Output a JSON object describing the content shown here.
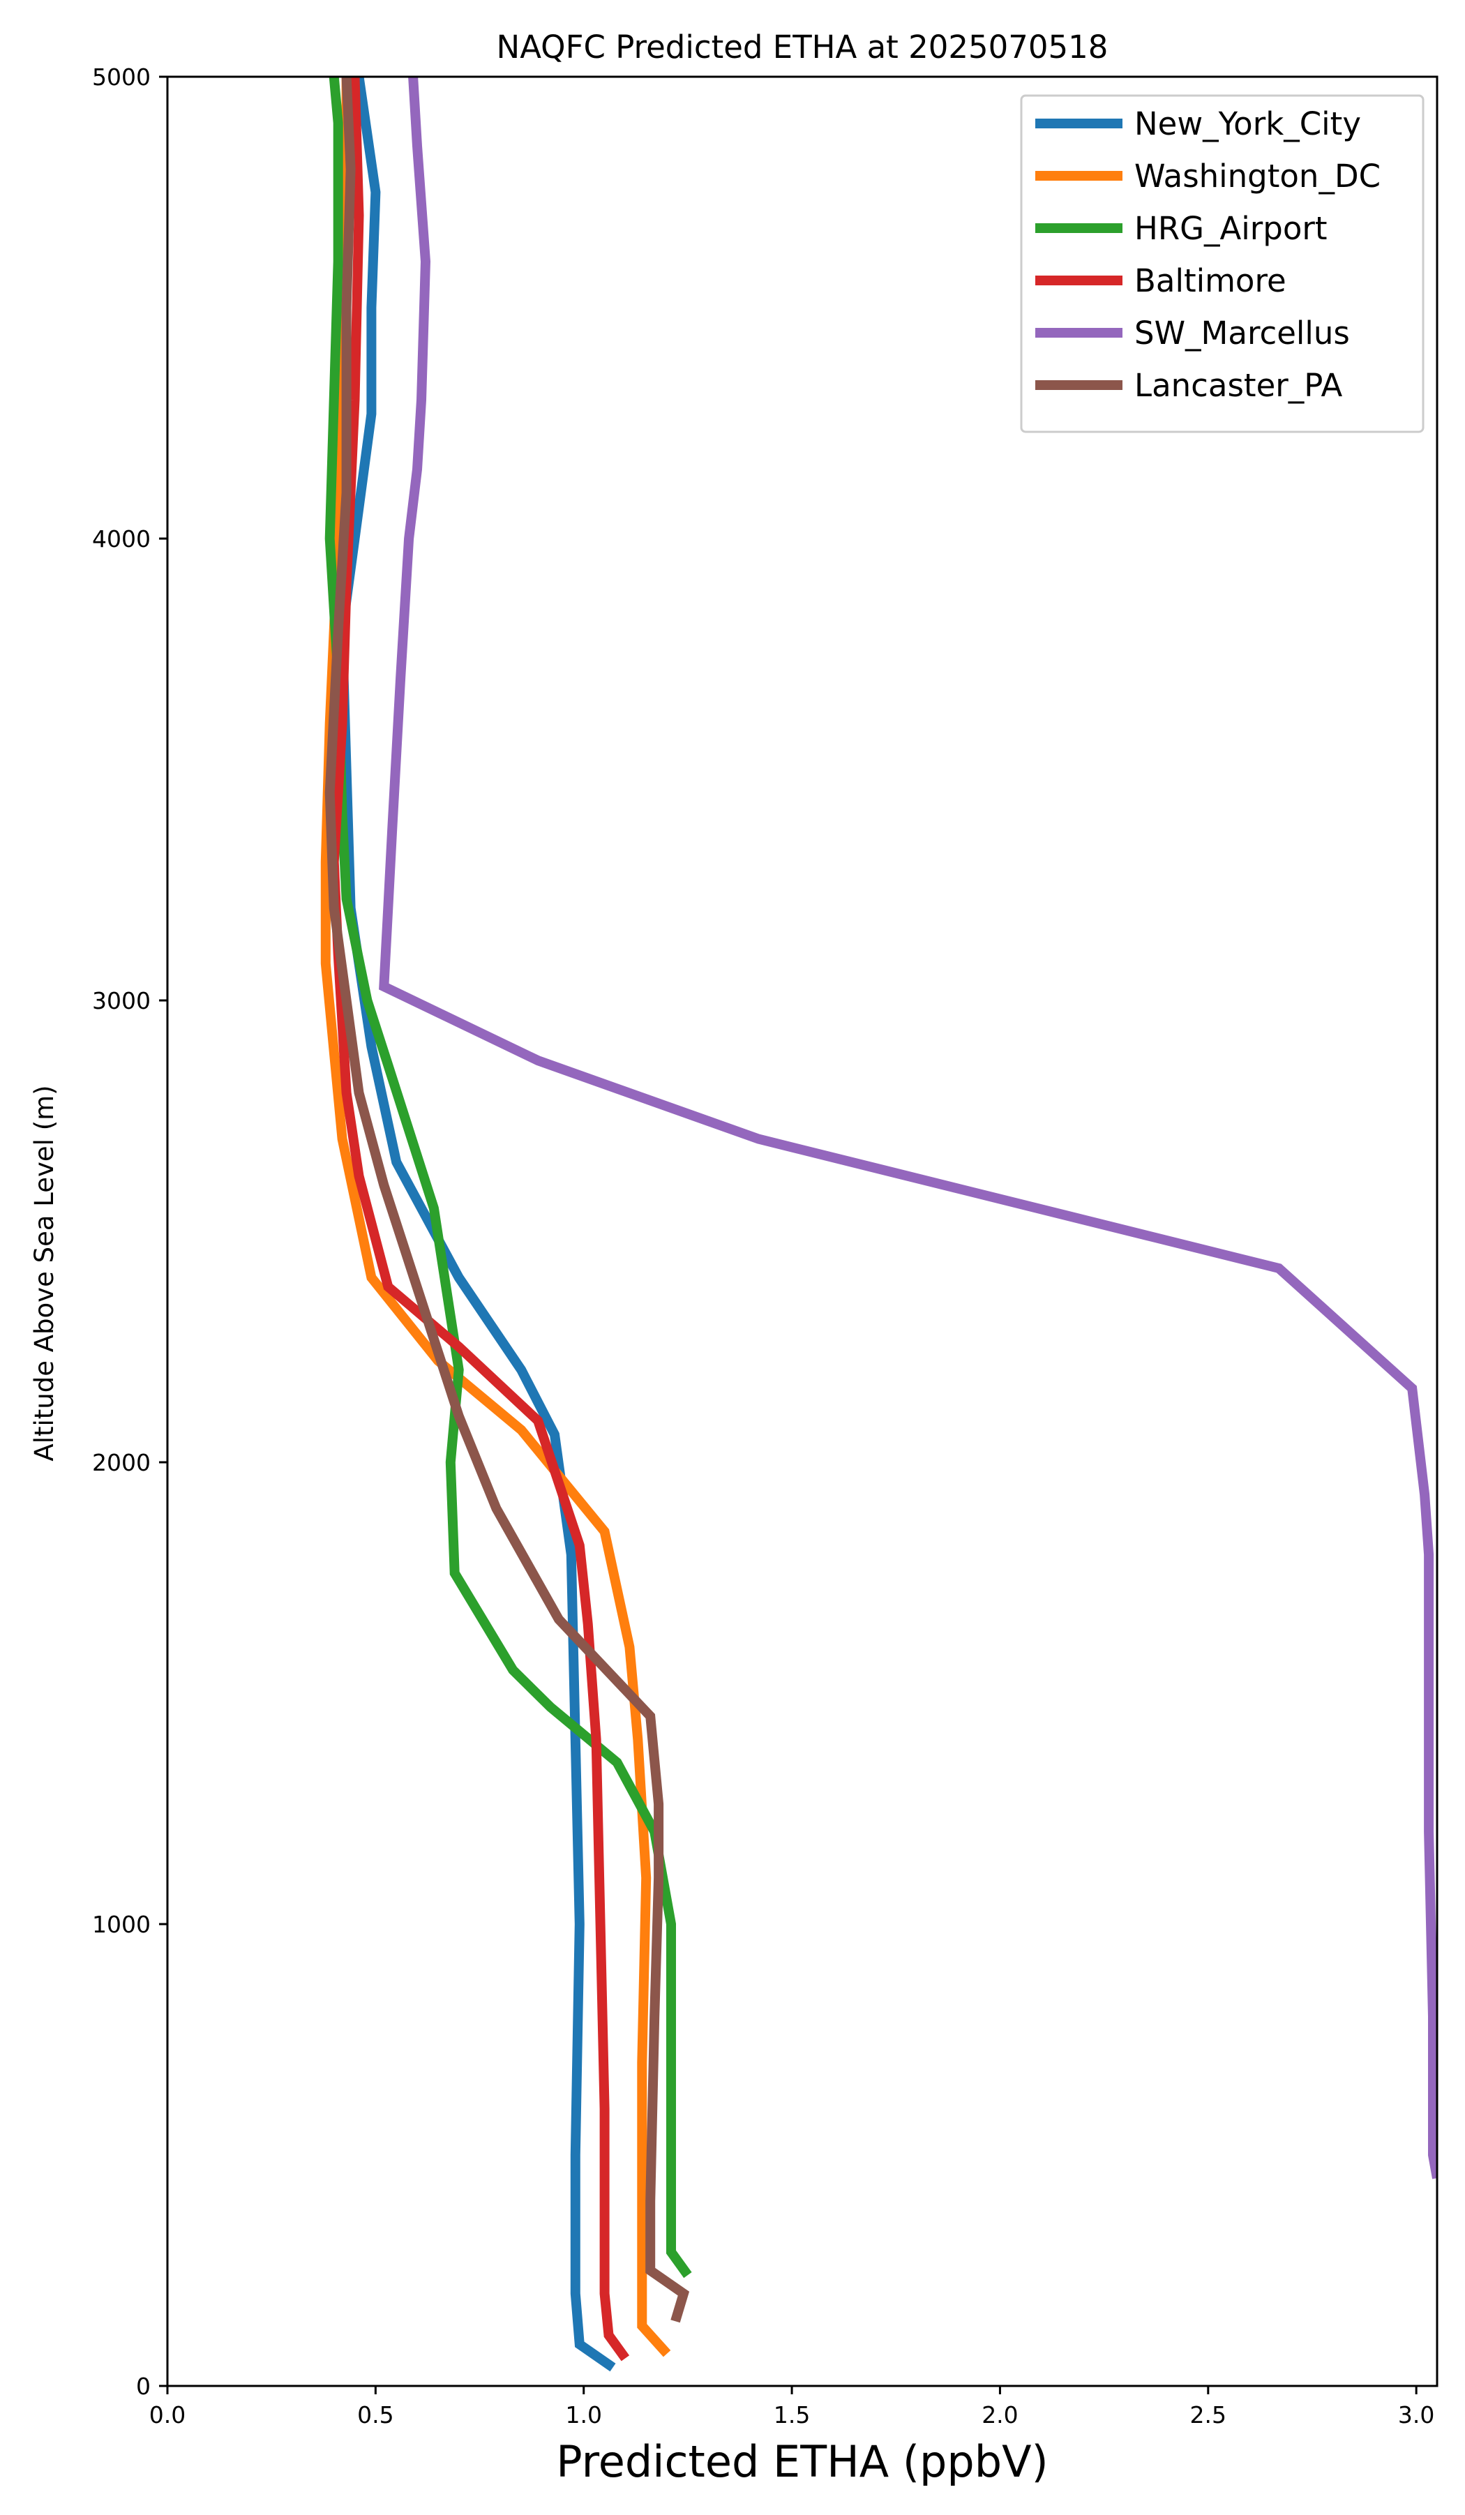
{
  "chart_data": {
    "type": "line",
    "title": "NAQFC Predicted ETHA at 2025070518",
    "xlabel": "Predicted ETHA (ppbV)",
    "ylabel": "Altitude Above Sea Level (m)",
    "xlim": [
      0.0,
      3.05
    ],
    "ylim": [
      0,
      5000
    ],
    "xticks": [
      {
        "value": 0.0,
        "label": "0.0"
      },
      {
        "value": 0.5,
        "label": "0.5"
      },
      {
        "value": 1.0,
        "label": "1.0"
      },
      {
        "value": 1.5,
        "label": "1.5"
      },
      {
        "value": 2.0,
        "label": "2.0"
      },
      {
        "value": 2.5,
        "label": "2.5"
      },
      {
        "value": 3.0,
        "label": "3.0"
      }
    ],
    "yticks": [
      {
        "value": 0,
        "label": "0"
      },
      {
        "value": 1000,
        "label": "1000"
      },
      {
        "value": 2000,
        "label": "2000"
      },
      {
        "value": 3000,
        "label": "3000"
      },
      {
        "value": 4000,
        "label": "4000"
      },
      {
        "value": 5000,
        "label": "5000"
      }
    ],
    "grid": false,
    "legend_position": "top-right",
    "series": [
      {
        "name": "New_York_City",
        "color": "#1f77b4",
        "points": [
          [
            1.07,
            40
          ],
          [
            0.99,
            90
          ],
          [
            0.98,
            200
          ],
          [
            0.98,
            500
          ],
          [
            0.99,
            1000
          ],
          [
            0.98,
            1400
          ],
          [
            0.97,
            1800
          ],
          [
            0.93,
            2060
          ],
          [
            0.85,
            2200
          ],
          [
            0.7,
            2400
          ],
          [
            0.55,
            2650
          ],
          [
            0.49,
            2900
          ],
          [
            0.44,
            3200
          ],
          [
            0.43,
            3500
          ],
          [
            0.42,
            3800
          ],
          [
            0.45,
            4000
          ],
          [
            0.49,
            4270
          ],
          [
            0.49,
            4500
          ],
          [
            0.5,
            4750
          ],
          [
            0.46,
            5000
          ]
        ]
      },
      {
        "name": "Washington_DC",
        "color": "#ff7f0e",
        "points": [
          [
            1.2,
            70
          ],
          [
            1.14,
            130
          ],
          [
            1.14,
            300
          ],
          [
            1.14,
            700
          ],
          [
            1.15,
            1100
          ],
          [
            1.13,
            1400
          ],
          [
            1.11,
            1600
          ],
          [
            1.05,
            1850
          ],
          [
            0.85,
            2070
          ],
          [
            0.65,
            2220
          ],
          [
            0.49,
            2400
          ],
          [
            0.42,
            2700
          ],
          [
            0.38,
            3080
          ],
          [
            0.38,
            3300
          ],
          [
            0.39,
            3600
          ],
          [
            0.41,
            4000
          ],
          [
            0.42,
            4300
          ],
          [
            0.43,
            4700
          ],
          [
            0.43,
            5000
          ]
        ]
      },
      {
        "name": "HRG_Airport",
        "color": "#2ca02c",
        "points": [
          [
            1.25,
            240
          ],
          [
            1.21,
            290
          ],
          [
            1.21,
            600
          ],
          [
            1.21,
            1000
          ],
          [
            1.17,
            1200
          ],
          [
            1.08,
            1350
          ],
          [
            0.92,
            1470
          ],
          [
            0.83,
            1550
          ],
          [
            0.69,
            1760
          ],
          [
            0.68,
            2000
          ],
          [
            0.7,
            2200
          ],
          [
            0.64,
            2550
          ],
          [
            0.53,
            2860
          ],
          [
            0.48,
            3000
          ],
          [
            0.43,
            3220
          ],
          [
            0.42,
            3400
          ],
          [
            0.41,
            3700
          ],
          [
            0.39,
            4000
          ],
          [
            0.4,
            4300
          ],
          [
            0.41,
            4600
          ],
          [
            0.41,
            4900
          ],
          [
            0.4,
            5000
          ]
        ]
      },
      {
        "name": "Baltimore",
        "color": "#d62728",
        "points": [
          [
            1.1,
            60
          ],
          [
            1.06,
            110
          ],
          [
            1.05,
            200
          ],
          [
            1.05,
            600
          ],
          [
            1.04,
            1000
          ],
          [
            1.03,
            1400
          ],
          [
            1.01,
            1650
          ],
          [
            0.99,
            1820
          ],
          [
            0.89,
            2090
          ],
          [
            0.7,
            2250
          ],
          [
            0.53,
            2380
          ],
          [
            0.46,
            2620
          ],
          [
            0.43,
            2800
          ],
          [
            0.41,
            3100
          ],
          [
            0.4,
            3300
          ],
          [
            0.42,
            3600
          ],
          [
            0.43,
            3900
          ],
          [
            0.45,
            4300
          ],
          [
            0.46,
            4700
          ],
          [
            0.45,
            5000
          ]
        ]
      },
      {
        "name": "SW_Marcellus",
        "color": "#9467bd",
        "points": [
          [
            3.05,
            450
          ],
          [
            3.04,
            500
          ],
          [
            3.04,
            800
          ],
          [
            3.03,
            1200
          ],
          [
            3.03,
            1500
          ],
          [
            3.03,
            1800
          ],
          [
            3.02,
            1930
          ],
          [
            2.99,
            2160
          ],
          [
            2.67,
            2420
          ],
          [
            1.42,
            2700
          ],
          [
            0.89,
            2870
          ],
          [
            0.52,
            3030
          ],
          [
            0.53,
            3200
          ],
          [
            0.54,
            3370
          ],
          [
            0.56,
            3700
          ],
          [
            0.58,
            4000
          ],
          [
            0.6,
            4150
          ],
          [
            0.61,
            4300
          ],
          [
            0.62,
            4600
          ],
          [
            0.6,
            4850
          ],
          [
            0.59,
            5000
          ]
        ]
      },
      {
        "name": "Lancaster_PA",
        "color": "#8c564b",
        "points": [
          [
            1.22,
            140
          ],
          [
            1.24,
            200
          ],
          [
            1.16,
            250
          ],
          [
            1.16,
            400
          ],
          [
            1.17,
            800
          ],
          [
            1.18,
            1100
          ],
          [
            1.18,
            1260
          ],
          [
            1.16,
            1450
          ],
          [
            0.94,
            1660
          ],
          [
            0.79,
            1900
          ],
          [
            0.7,
            2100
          ],
          [
            0.61,
            2350
          ],
          [
            0.52,
            2600
          ],
          [
            0.46,
            2800
          ],
          [
            0.43,
            3000
          ],
          [
            0.4,
            3200
          ],
          [
            0.39,
            3450
          ],
          [
            0.41,
            3800
          ],
          [
            0.43,
            4100
          ],
          [
            0.43,
            4500
          ],
          [
            0.44,
            4800
          ],
          [
            0.43,
            5000
          ]
        ]
      }
    ]
  }
}
